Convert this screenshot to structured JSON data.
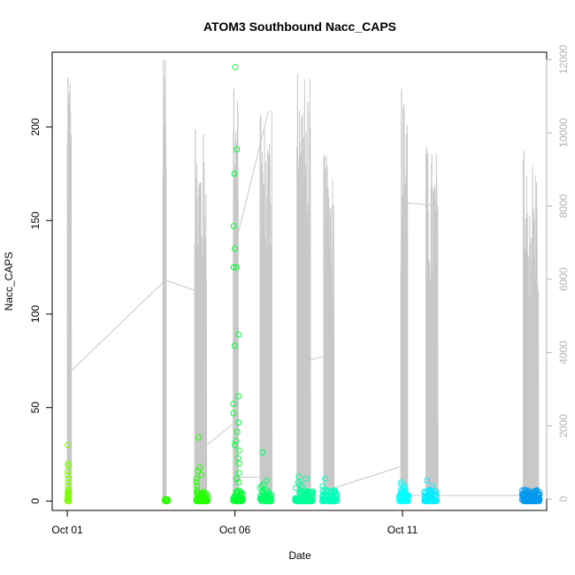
{
  "chart_data": {
    "type": "scatter",
    "title": "ATOM3 Southbound Nacc_CAPS",
    "xlabel": "Date",
    "ylabel": "Nacc_CAPS",
    "x_ticks": [
      {
        "label": "Oct 01",
        "day": 1
      },
      {
        "label": "Oct 06",
        "day": 6
      },
      {
        "label": "Oct 11",
        "day": 11
      }
    ],
    "x_range_days": [
      0.55,
      15.3
    ],
    "y_left": {
      "range": [
        -5,
        240
      ],
      "ticks": [
        0,
        50,
        100,
        150,
        200
      ]
    },
    "y_right": {
      "range": [
        -310,
        12200
      ],
      "ticks": [
        0,
        2000,
        4000,
        6000,
        8000,
        10000,
        12000
      ],
      "color": "#b3b3b3"
    },
    "grid": false,
    "scatter_series": [
      {
        "cluster_days": [
          1.0,
          1.05
        ],
        "color": "#7fff00",
        "max": 30,
        "spikes": [
          20,
          19,
          16,
          14,
          12,
          10,
          8,
          6
        ]
      },
      {
        "cluster_days": [
          3.9,
          4.0
        ],
        "color": "#33ff00",
        "max": 1,
        "spikes": []
      },
      {
        "cluster_days": [
          4.85,
          5.2
        ],
        "color": "#22ff00",
        "max": 34,
        "spikes": [
          18,
          16,
          14,
          12,
          10,
          8,
          6
        ]
      },
      {
        "cluster_days": [
          5.95,
          6.25
        ],
        "color": "#00ff33",
        "max": 232,
        "spikes": [
          188,
          175,
          147,
          135,
          125,
          125,
          89,
          83,
          56,
          52,
          47,
          42,
          37,
          32,
          30,
          27,
          23,
          20,
          15,
          12,
          10
        ]
      },
      {
        "cluster_days": [
          6.75,
          7.1
        ],
        "color": "#00ff66",
        "max": 26,
        "spikes": [
          11,
          9,
          8,
          7,
          6
        ]
      },
      {
        "cluster_days": [
          7.8,
          8.35
        ],
        "color": "#00ff99",
        "max": 13,
        "spikes": [
          12,
          10,
          9,
          8,
          7
        ]
      },
      {
        "cluster_days": [
          8.6,
          9.05
        ],
        "color": "#00ffbb",
        "max": 12,
        "spikes": [
          8,
          6,
          5
        ]
      },
      {
        "cluster_days": [
          10.9,
          11.2
        ],
        "color": "#00ffff",
        "max": 10,
        "spikes": [
          9,
          8,
          7,
          6
        ]
      },
      {
        "cluster_days": [
          11.65,
          12.05
        ],
        "color": "#00eeff",
        "max": 11,
        "spikes": [
          8,
          6,
          5
        ]
      },
      {
        "cluster_days": [
          14.55,
          15.1
        ],
        "color": "#0099ee",
        "max": 6,
        "spikes": [
          5,
          4,
          3
        ]
      }
    ],
    "line_series": {
      "color": "#c8c8c8",
      "axis": "right",
      "bursts": [
        {
          "start": 1.0,
          "end": 1.12,
          "peak": 11500,
          "low_after": 3500
        },
        {
          "start": 3.85,
          "end": 3.95,
          "peak": 12000,
          "low_after": 6000
        },
        {
          "start": 4.8,
          "end": 5.15,
          "peak": 10100,
          "low_after": 5750
        },
        {
          "start": 5.95,
          "end": 6.1,
          "peak": 11200,
          "low_after": 2300
        },
        {
          "start": 6.75,
          "end": 7.1,
          "peak": 10500,
          "low_after": 10600
        },
        {
          "start": 7.85,
          "end": 8.25,
          "peak": 11600,
          "low_after": 3700
        },
        {
          "start": 8.65,
          "end": 8.95,
          "peak": 9400,
          "low_after": 3900
        },
        {
          "start": 10.95,
          "end": 11.15,
          "peak": 11200,
          "low_after": 8100
        },
        {
          "start": 11.7,
          "end": 12.05,
          "peak": 9600,
          "low_after": 8000
        },
        {
          "start": 14.6,
          "end": 15.05,
          "peak": 9500,
          "low_after": 5000
        }
      ],
      "connectors": [
        [
          1.12,
          3500,
          3.95,
          6000
        ],
        [
          3.85,
          6000,
          4.8,
          5700
        ],
        [
          4.8,
          1200,
          6.0,
          2100
        ],
        [
          5.95,
          6700,
          7.0,
          10600
        ],
        [
          6.1,
          600,
          7.1,
          600
        ],
        [
          7.85,
          3700,
          8.65,
          3900
        ],
        [
          8.95,
          300,
          11.0,
          900
        ],
        [
          11.0,
          8100,
          12.05,
          8000
        ],
        [
          11.2,
          100,
          15.05,
          100
        ]
      ]
    }
  }
}
